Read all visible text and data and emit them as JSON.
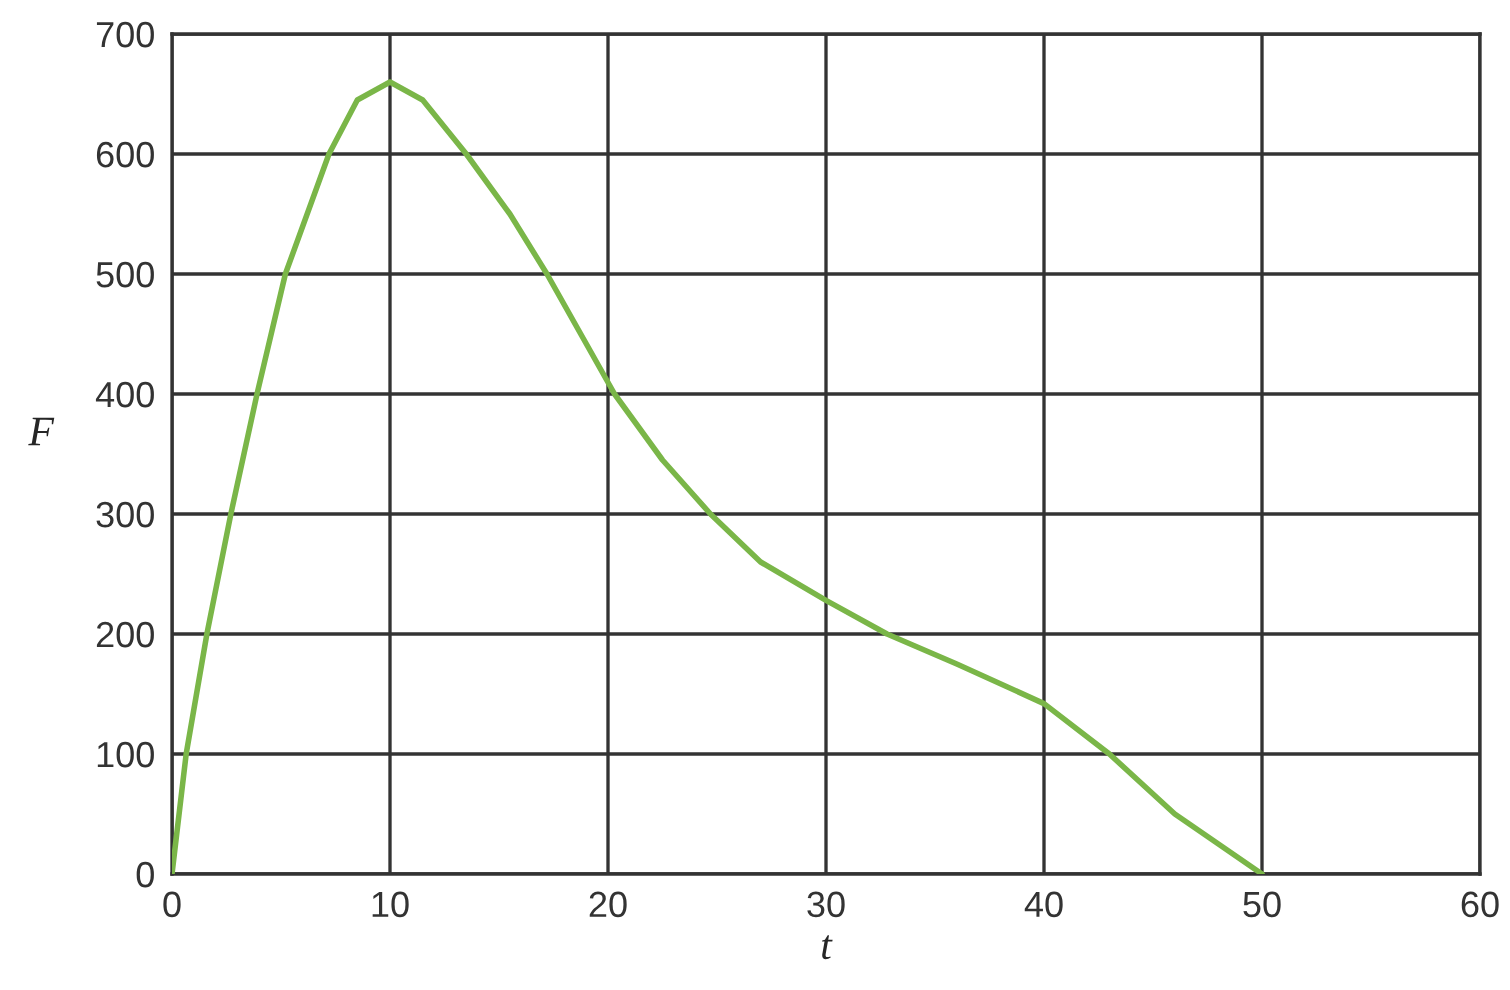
{
  "chart_data": {
    "type": "line",
    "xlabel": "t",
    "ylabel": "F",
    "x": [
      0,
      0.65,
      1.6,
      2.7,
      3.9,
      5.2,
      7.2,
      8.5,
      10,
      11.5,
      13.5,
      15.5,
      17.2,
      20.3,
      22.5,
      24.7,
      27,
      30,
      32.8,
      36,
      40,
      43,
      46,
      48,
      50
    ],
    "series": [
      {
        "color": "#7ab648",
        "values": [
          0,
          100,
          200,
          300,
          400,
          500,
          600,
          645,
          660,
          645,
          600,
          550,
          500,
          400,
          345,
          300,
          260,
          228,
          200,
          175,
          142,
          100,
          50,
          25,
          0
        ]
      }
    ],
    "xlim": [
      0,
      60
    ],
    "ylim": [
      0,
      700
    ],
    "xticks": [
      0,
      10,
      20,
      30,
      40,
      50,
      60
    ],
    "yticks": [
      0,
      100,
      200,
      300,
      400,
      500,
      600,
      700
    ],
    "grid": true,
    "marker": "none",
    "line_style": "solid"
  }
}
